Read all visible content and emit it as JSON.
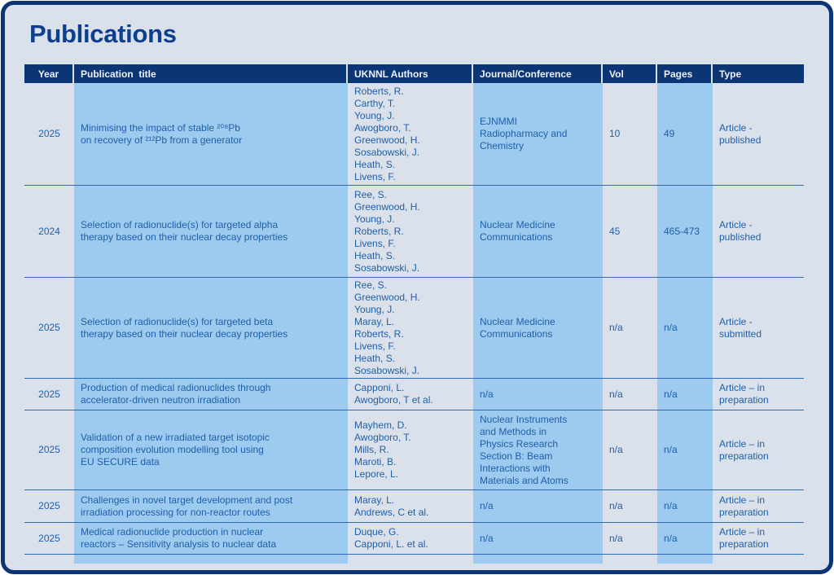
{
  "page": {
    "title": "Publications"
  },
  "colors": {
    "navy": "#0b3575",
    "title_navy": "#0d3f8f",
    "background": "#dae1eb",
    "stripe_blue": "#9dcbf0",
    "text_blue": "#1e5fa9",
    "row_line": "#2e6bb2",
    "header_text": "#eef3f9"
  },
  "table": {
    "columns": [
      {
        "key": "year",
        "label": "Year"
      },
      {
        "key": "title",
        "label": "Publication  title"
      },
      {
        "key": "authors",
        "label": "UKNNL Authors"
      },
      {
        "key": "journal",
        "label": "Journal/Conference"
      },
      {
        "key": "vol",
        "label": "Vol"
      },
      {
        "key": "pages",
        "label": "Pages"
      },
      {
        "key": "type",
        "label": "Type"
      }
    ],
    "rows": [
      {
        "year": "2025",
        "title": "Minimising the impact of stable ²⁰⁸Pb\non recovery of ²¹²Pb from a generator",
        "authors": [
          "Roberts, R.",
          "Carthy, T.",
          "Young, J.",
          "Awogboro, T.",
          "Greenwood, H.",
          "Sosabowski, J.",
          "Heath, S.",
          "Livens, F."
        ],
        "journal": "EJNMMI\nRadiopharmacy and\nChemistry",
        "vol": "10",
        "pages": "49",
        "type": "Article -\npublished"
      },
      {
        "year": "2024",
        "title": "Selection of radionuclide(s) for targeted alpha\ntherapy based on their nuclear decay properties",
        "authors": [
          "Ree, S.",
          "Greenwood, H.",
          "Young, J.",
          "Roberts, R.",
          "Livens, F.",
          "Heath, S.",
          "Sosabowski, J."
        ],
        "journal": "Nuclear Medicine\nCommunications",
        "vol": "45",
        "pages": "465-473",
        "type": "Article -\npublished"
      },
      {
        "year": "2025",
        "title": "Selection of radionuclide(s) for targeted beta\ntherapy based on their nuclear decay properties",
        "authors": [
          "Ree, S.",
          "Greenwood, H.",
          "Young, J.",
          "Maray, L.",
          "Roberts, R.",
          "Livens, F.",
          "Heath, S.",
          "Sosabowski, J."
        ],
        "journal": "Nuclear Medicine\nCommunications",
        "vol": "n/a",
        "pages": "n/a",
        "type": "Article -\nsubmitted"
      },
      {
        "year": "2025",
        "title": "Production of medical radionuclides through\naccelerator-driven neutron irradiation",
        "authors": [
          "Capponi, L.",
          "Awogboro, T et al."
        ],
        "journal": "n/a",
        "vol": "n/a",
        "pages": "n/a",
        "type": "Article – in\npreparation"
      },
      {
        "year": "2025",
        "title": "Validation of a new irradiated target isotopic\ncomposition evolution modelling tool using\nEU SECURE data",
        "authors": [
          "Mayhem, D.",
          "Awogboro, T.",
          "Mills, R.",
          "Maroti, B.",
          "Lepore, L."
        ],
        "journal": "Nuclear Instruments\nand Methods in\nPhysics Research\nSection B: Beam\nInteractions with\nMaterials and Atoms",
        "vol": "n/a",
        "pages": "n/a",
        "type": "Article – in\npreparation"
      },
      {
        "year": "2025",
        "title": "Challenges in novel target development and post\nirradiation processing for non-reactor routes",
        "authors": [
          "Maray, L.",
          "Andrews, C et al."
        ],
        "journal": "n/a",
        "vol": "n/a",
        "pages": "n/a",
        "type": "Article – in\npreparation"
      },
      {
        "year": "2025",
        "title": "Medical radionuclide production in nuclear\nreactors – Sensitivity analysis to nuclear data",
        "authors": [
          "Duque, G.",
          "Capponi, L. et al."
        ],
        "journal": "n/a",
        "vol": "n/a",
        "pages": "n/a",
        "type": "Article – in\npreparation"
      }
    ]
  }
}
